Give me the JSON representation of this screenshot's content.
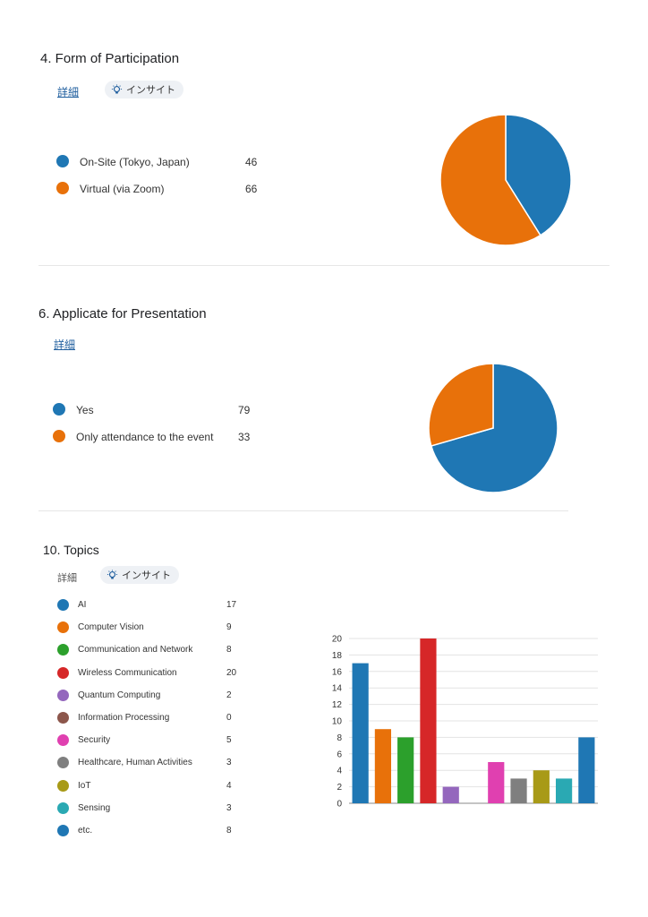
{
  "detail_label": "詳細",
  "insight_label": "インサイト",
  "q4": {
    "title": "4.  Form of Participation",
    "legend": [
      {
        "label": "On-Site (Tokyo, Japan)",
        "value": "46",
        "color": "#1f77b4"
      },
      {
        "label": "Virtual (via Zoom)",
        "value": "66",
        "color": "#e8710a"
      }
    ]
  },
  "q6": {
    "title": "6.  Applicate for Presentation",
    "legend": [
      {
        "label": "Yes",
        "value": "79",
        "color": "#1f77b4"
      },
      {
        "label": "Only attendance to the event",
        "value": "33",
        "color": "#e8710a"
      }
    ]
  },
  "q10": {
    "title": "10.  Topics",
    "legend": [
      {
        "label": "AI",
        "value": "17",
        "color": "#1f77b4"
      },
      {
        "label": "Computer Vision",
        "value": "9",
        "color": "#e8710a"
      },
      {
        "label": "Communication and Network",
        "value": "8",
        "color": "#2ca02c"
      },
      {
        "label": "Wireless Communication",
        "value": "20",
        "color": "#d62728"
      },
      {
        "label": "Quantum Computing",
        "value": "2",
        "color": "#9467bd"
      },
      {
        "label": "Information Processing",
        "value": "0",
        "color": "#8c564b"
      },
      {
        "label": "Security",
        "value": "5",
        "color": "#e040b0"
      },
      {
        "label": "Healthcare, Human Activities",
        "value": "3",
        "color": "#7f7f7f"
      },
      {
        "label": "IoT",
        "value": "4",
        "color": "#a89a17"
      },
      {
        "label": "Sensing",
        "value": "3",
        "color": "#2aa9b3"
      },
      {
        "label": "etc.",
        "value": "8",
        "color": "#1f77b4"
      }
    ]
  },
  "chart_data": [
    {
      "type": "pie",
      "labels": [
        "On-Site (Tokyo, Japan)",
        "Virtual (via Zoom)"
      ],
      "values": [
        46,
        66
      ],
      "colors": [
        "#1f77b4",
        "#e8710a"
      ]
    },
    {
      "type": "pie",
      "labels": [
        "Yes",
        "Only attendance to the event"
      ],
      "values": [
        79,
        33
      ],
      "colors": [
        "#1f77b4",
        "#e8710a"
      ]
    },
    {
      "type": "bar",
      "categories": [
        "AI",
        "Computer Vision",
        "Communication and Network",
        "Wireless Communication",
        "Quantum Computing",
        "Information Processing",
        "Security",
        "Healthcare, Human Activities",
        "IoT",
        "Sensing",
        "etc."
      ],
      "values": [
        17,
        9,
        8,
        20,
        2,
        0,
        5,
        3,
        4,
        3,
        8
      ],
      "colors": [
        "#1f77b4",
        "#e8710a",
        "#2ca02c",
        "#d62728",
        "#9467bd",
        "#8c564b",
        "#e040b0",
        "#7f7f7f",
        "#a89a17",
        "#2aa9b3",
        "#1f77b4"
      ],
      "ylim": [
        0,
        20
      ],
      "yticks": [
        0,
        2,
        4,
        6,
        8,
        10,
        12,
        14,
        16,
        18,
        20
      ],
      "grid": true
    }
  ]
}
